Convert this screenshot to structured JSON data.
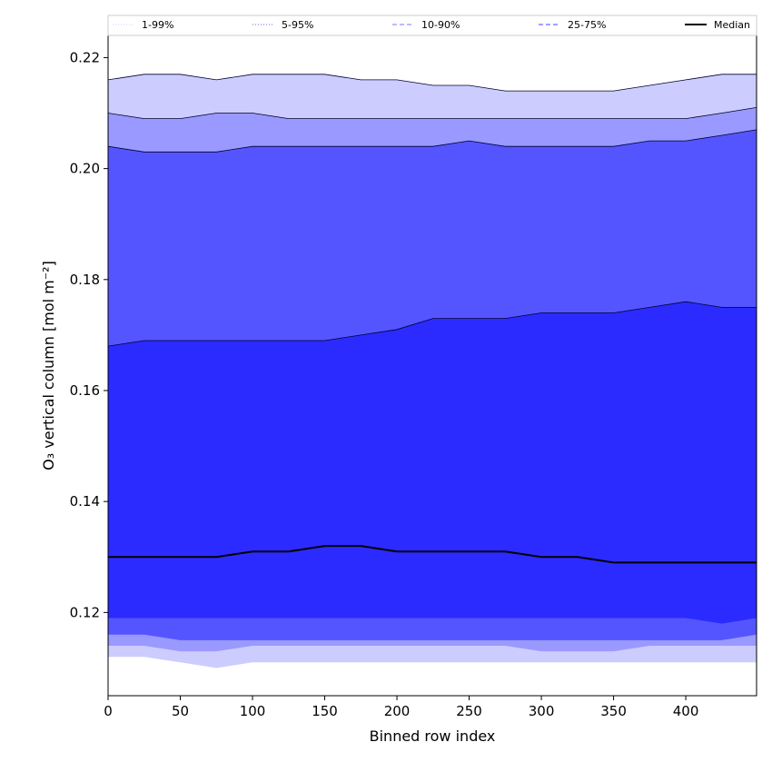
{
  "chart_data": {
    "type": "area",
    "xlabel": "Binned row index",
    "ylabel": "O₃ vertical column [mol m⁻²]",
    "xlim": [
      0,
      449
    ],
    "ylim": [
      0.105,
      0.224
    ],
    "x_ticks": [
      0,
      50,
      100,
      150,
      200,
      250,
      300,
      350,
      400
    ],
    "y_ticks": [
      0.12,
      0.14,
      0.16,
      0.18,
      0.2,
      0.22
    ],
    "y_tick_labels": [
      "0.12",
      "0.14",
      "0.16",
      "0.18",
      "0.20",
      "0.22"
    ],
    "grid": false,
    "legend_position": "top",
    "x": [
      0,
      25,
      50,
      75,
      100,
      125,
      150,
      175,
      200,
      225,
      250,
      275,
      300,
      325,
      350,
      375,
      400,
      425,
      449
    ],
    "bands": [
      {
        "name": "1-99%",
        "color": "#ccccff",
        "line_color": "#ccccff",
        "line_style": "dotted",
        "upper": [
          0.216,
          0.217,
          0.217,
          0.216,
          0.217,
          0.217,
          0.217,
          0.216,
          0.216,
          0.215,
          0.215,
          0.214,
          0.214,
          0.214,
          0.214,
          0.215,
          0.216,
          0.217,
          0.217
        ],
        "lower": [
          0.112,
          0.112,
          0.111,
          0.11,
          0.111,
          0.111,
          0.111,
          0.111,
          0.111,
          0.111,
          0.111,
          0.111,
          0.111,
          0.111,
          0.111,
          0.111,
          0.111,
          0.111,
          0.111
        ]
      },
      {
        "name": "5-95%",
        "color": "#9999ff",
        "line_color": "#6666ff",
        "line_style": "dotted",
        "upper": [
          0.21,
          0.209,
          0.209,
          0.21,
          0.21,
          0.209,
          0.209,
          0.209,
          0.209,
          0.209,
          0.209,
          0.209,
          0.209,
          0.209,
          0.209,
          0.209,
          0.209,
          0.21,
          0.211
        ],
        "lower": [
          0.114,
          0.114,
          0.113,
          0.113,
          0.114,
          0.114,
          0.114,
          0.114,
          0.114,
          0.114,
          0.114,
          0.114,
          0.113,
          0.113,
          0.113,
          0.114,
          0.114,
          0.114,
          0.114
        ]
      },
      {
        "name": "10-90%",
        "color": "#5555ff",
        "line_color": "#7777ff",
        "line_style": "dashed",
        "upper": [
          0.204,
          0.203,
          0.203,
          0.203,
          0.204,
          0.204,
          0.204,
          0.204,
          0.204,
          0.204,
          0.205,
          0.204,
          0.204,
          0.204,
          0.204,
          0.205,
          0.205,
          0.206,
          0.207
        ],
        "lower": [
          0.116,
          0.116,
          0.115,
          0.115,
          0.115,
          0.115,
          0.115,
          0.115,
          0.115,
          0.115,
          0.115,
          0.115,
          0.115,
          0.115,
          0.115,
          0.115,
          0.115,
          0.115,
          0.116
        ]
      },
      {
        "name": "25-75%",
        "color": "#2b2bff",
        "line_color": "#4444ff",
        "line_style": "dashed",
        "upper": [
          0.168,
          0.169,
          0.169,
          0.169,
          0.169,
          0.169,
          0.169,
          0.17,
          0.171,
          0.173,
          0.173,
          0.173,
          0.174,
          0.174,
          0.174,
          0.175,
          0.176,
          0.175,
          0.175
        ],
        "lower": [
          0.119,
          0.119,
          0.119,
          0.119,
          0.119,
          0.119,
          0.119,
          0.119,
          0.119,
          0.119,
          0.119,
          0.119,
          0.119,
          0.119,
          0.119,
          0.119,
          0.119,
          0.118,
          0.119
        ]
      }
    ],
    "series": [
      {
        "name": "Median",
        "color": "#000000",
        "values": [
          0.13,
          0.13,
          0.13,
          0.13,
          0.131,
          0.131,
          0.132,
          0.132,
          0.131,
          0.131,
          0.131,
          0.131,
          0.13,
          0.13,
          0.129,
          0.129,
          0.129,
          0.129,
          0.129
        ]
      }
    ]
  }
}
